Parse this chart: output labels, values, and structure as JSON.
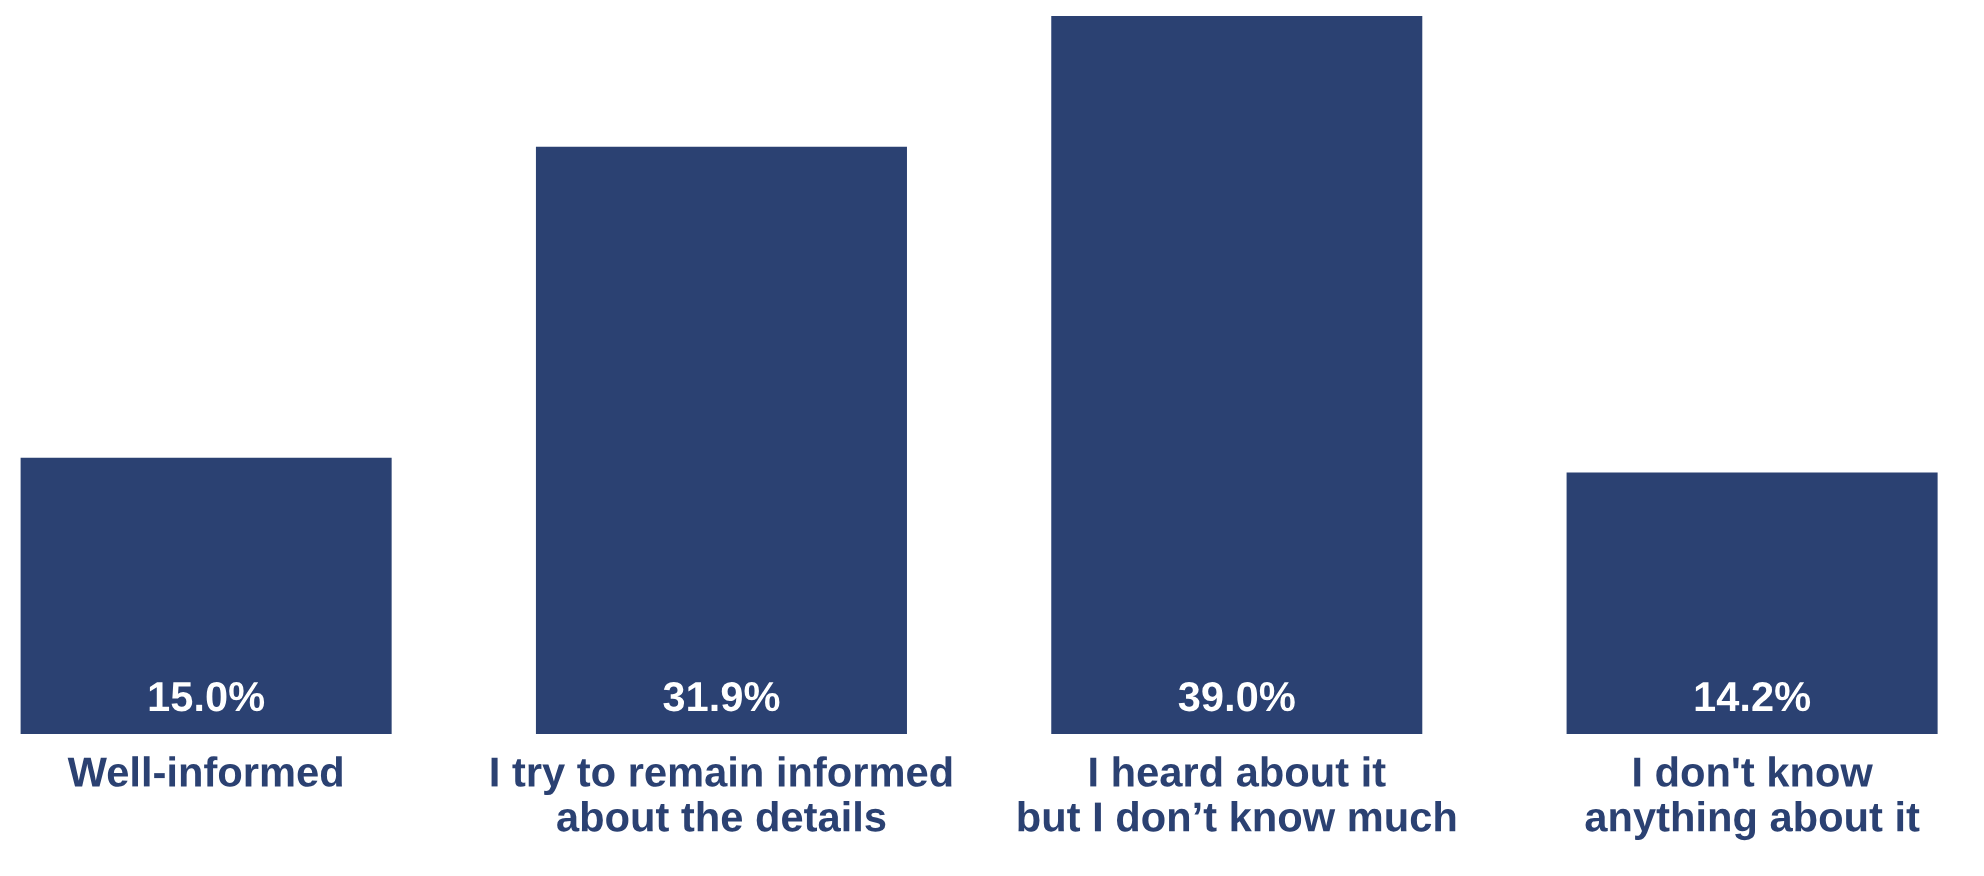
{
  "chart_data": {
    "type": "bar",
    "categories": [
      "Well-informed",
      "I try to remain informed\nabout the details",
      "I heard about it\nbut I don’t know much",
      "I don't know\nanything about it"
    ],
    "values": [
      15.0,
      31.9,
      39.0,
      14.2
    ],
    "value_labels": [
      "15.0%",
      "31.9%",
      "39.0%",
      "14.2%"
    ],
    "color": "#2b4172",
    "grid": false,
    "legend": false
  }
}
